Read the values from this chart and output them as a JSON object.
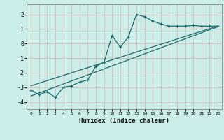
{
  "xlabel": "Humidex (Indice chaleur)",
  "bg_color": "#cceee8",
  "grid_color": "#aad4ce",
  "line_color": "#1a6b6b",
  "xlim": [
    -0.5,
    23.5
  ],
  "ylim": [
    -4.5,
    2.7
  ],
  "yticks": [
    -4,
    -3,
    -2,
    -1,
    0,
    1,
    2
  ],
  "xticks": [
    0,
    1,
    2,
    3,
    4,
    5,
    6,
    7,
    8,
    9,
    10,
    11,
    12,
    13,
    14,
    15,
    16,
    17,
    18,
    19,
    20,
    21,
    22,
    23
  ],
  "zigzag_x": [
    0,
    1,
    2,
    3,
    4,
    5,
    6,
    7,
    8,
    9,
    10,
    11,
    12,
    13,
    14,
    15,
    16,
    17,
    18,
    19,
    20,
    21,
    22,
    23
  ],
  "zigzag_y": [
    -3.2,
    -3.5,
    -3.3,
    -3.7,
    -3.0,
    -2.9,
    -2.65,
    -2.5,
    -1.55,
    -1.3,
    0.55,
    -0.25,
    0.45,
    2.0,
    1.85,
    1.55,
    1.35,
    1.2,
    1.2,
    1.2,
    1.25,
    1.2,
    1.2,
    1.2
  ],
  "line1_x": [
    0,
    23
  ],
  "line1_y": [
    -3.6,
    1.15
  ],
  "line2_x": [
    0,
    23
  ],
  "line2_y": [
    -2.9,
    1.2
  ]
}
